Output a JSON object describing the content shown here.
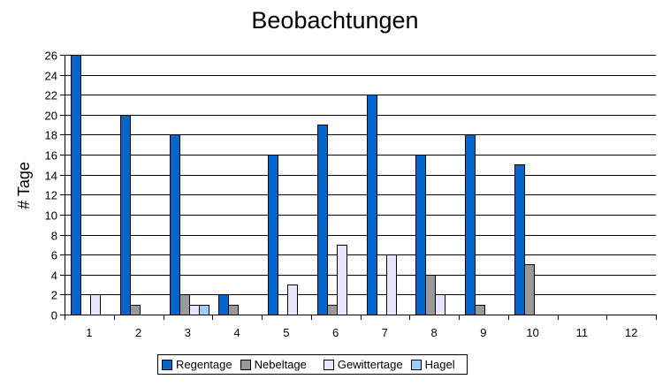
{
  "chart_data": {
    "type": "bar",
    "title": "Beobachtungen",
    "xlabel": "",
    "ylabel": "# Tage",
    "categories": [
      "1",
      "2",
      "3",
      "4",
      "5",
      "6",
      "7",
      "8",
      "9",
      "10",
      "11",
      "12"
    ],
    "series": [
      {
        "name": "Regentage",
        "color": "#0066cc",
        "values": [
          26,
          20,
          18,
          2,
          16,
          19,
          22,
          16,
          18,
          15,
          0,
          0
        ]
      },
      {
        "name": "Nebeltage",
        "color": "#999999",
        "values": [
          0,
          1,
          2,
          1,
          0,
          1,
          0,
          4,
          1,
          5,
          0,
          0
        ]
      },
      {
        "name": "Gewittertage",
        "color": "#e6e6ff",
        "values": [
          2,
          0,
          1,
          0,
          3,
          7,
          6,
          2,
          0,
          0,
          0,
          0
        ]
      },
      {
        "name": "Hagel",
        "color": "#99ccff",
        "values": [
          0,
          0,
          1,
          0,
          0,
          0,
          0,
          0,
          0,
          0,
          0,
          0
        ]
      }
    ],
    "ylim": [
      0,
      26
    ],
    "yticks": [
      0,
      2,
      4,
      6,
      8,
      10,
      12,
      14,
      16,
      18,
      20,
      22,
      24,
      26
    ],
    "grid": true,
    "legend_position": "bottom"
  }
}
